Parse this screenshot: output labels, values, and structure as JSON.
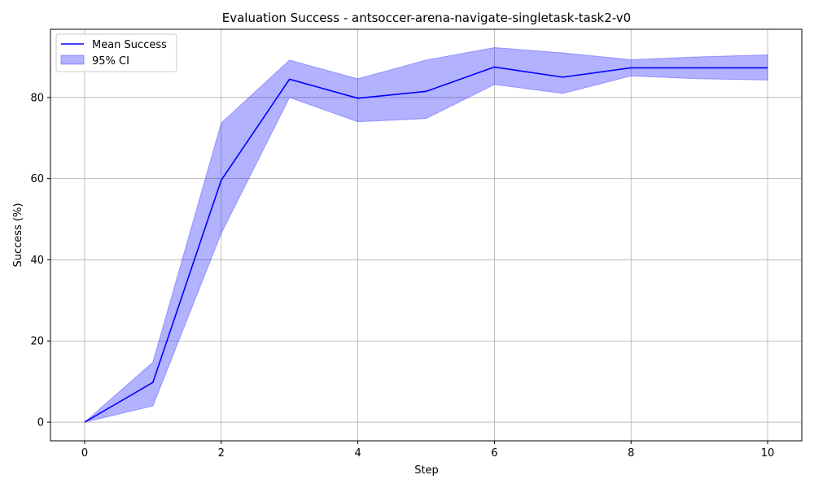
{
  "chart_data": {
    "type": "line",
    "title": "Evaluation Success - antsoccer-arena-navigate-singletask-task2-v0",
    "xlabel": "Step",
    "ylabel": "Success (%)",
    "xlim": [
      -0.5,
      10.5
    ],
    "ylim": [
      -4.6,
      96.8
    ],
    "x_ticks": [
      0,
      2,
      4,
      6,
      8,
      10
    ],
    "y_ticks": [
      0,
      20,
      40,
      60,
      80
    ],
    "grid": true,
    "legend_position": "top-left",
    "x": [
      0,
      1,
      2,
      3,
      4,
      5,
      6,
      7,
      8,
      9,
      10
    ],
    "series": [
      {
        "name": "Mean Success",
        "kind": "line",
        "color": "#0000ff",
        "values": [
          0,
          9.8,
          59.6,
          84.5,
          79.8,
          81.5,
          87.5,
          85.0,
          87.3,
          87.3,
          87.3
        ]
      },
      {
        "name": "95% CI",
        "kind": "band",
        "color": "#0000ff",
        "opacity": 0.3,
        "lower": [
          0,
          4.0,
          46.5,
          80.0,
          74.0,
          74.8,
          83.2,
          81.0,
          85.3,
          84.6,
          84.3
        ],
        "upper": [
          0,
          14.8,
          73.7,
          89.2,
          84.6,
          89.2,
          92.3,
          91.0,
          89.3,
          90.0,
          90.5
        ]
      }
    ]
  }
}
